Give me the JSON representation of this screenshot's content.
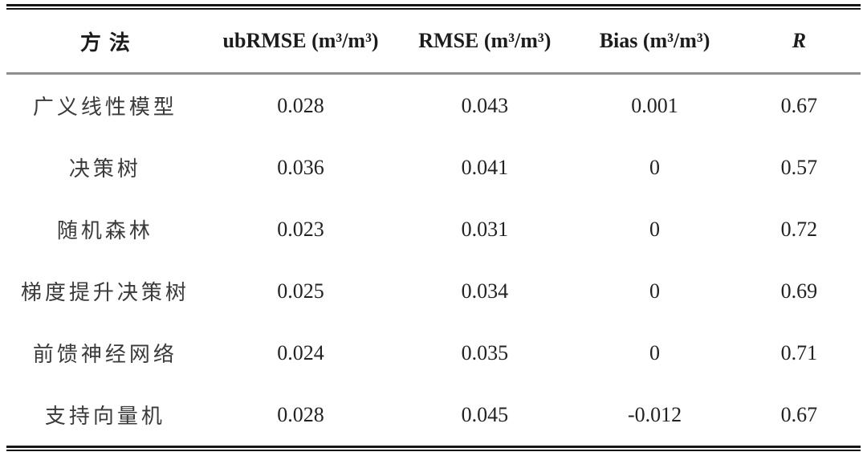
{
  "table": {
    "columns": [
      {
        "label": "方法"
      },
      {
        "label": "ubRMSE (m³/m³)"
      },
      {
        "label": "RMSE (m³/m³)"
      },
      {
        "label": "Bias (m³/m³)"
      },
      {
        "label": "R"
      }
    ],
    "rows": [
      {
        "method": "广义线性模型",
        "ubrmse": "0.028",
        "rmse": "0.043",
        "bias": "0.001",
        "r": "0.67"
      },
      {
        "method": "决策树",
        "ubrmse": "0.036",
        "rmse": "0.041",
        "bias": "0",
        "r": "0.57"
      },
      {
        "method": "随机森林",
        "ubrmse": "0.023",
        "rmse": "0.031",
        "bias": "0",
        "r": "0.72"
      },
      {
        "method": "梯度提升决策树",
        "ubrmse": "0.025",
        "rmse": "0.034",
        "bias": "0",
        "r": "0.69"
      },
      {
        "method": "前馈神经网络",
        "ubrmse": "0.024",
        "rmse": "0.035",
        "bias": "0",
        "r": "0.71"
      },
      {
        "method": "支持向量机",
        "ubrmse": "0.028",
        "rmse": "0.045",
        "bias": "-0.012",
        "r": "0.67"
      }
    ]
  },
  "colors": {
    "rule_black": "#161616",
    "rule_gray": "#8f8f8f",
    "text": "#222222",
    "background": "#ffffff"
  },
  "chart_data": {
    "type": "table",
    "title": "",
    "columns": [
      "方法",
      "ubRMSE (m³/m³)",
      "RMSE (m³/m³)",
      "Bias (m³/m³)",
      "R"
    ],
    "rows": [
      [
        "广义线性模型",
        0.028,
        0.043,
        0.001,
        0.67
      ],
      [
        "决策树",
        0.036,
        0.041,
        0,
        0.57
      ],
      [
        "随机森林",
        0.023,
        0.031,
        0,
        0.72
      ],
      [
        "梯度提升决策树",
        0.025,
        0.034,
        0,
        0.69
      ],
      [
        "前馈神经网络",
        0.024,
        0.035,
        0,
        0.71
      ],
      [
        "支持向量机",
        0.028,
        0.045,
        -0.012,
        0.67
      ]
    ]
  }
}
